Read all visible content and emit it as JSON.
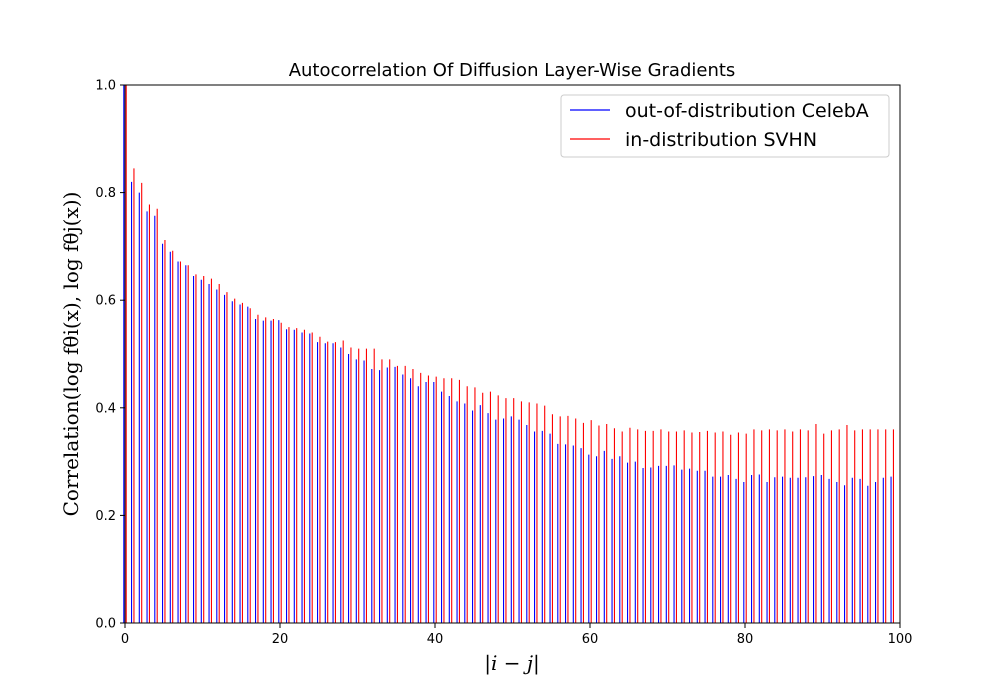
{
  "chart_data": {
    "type": "bar",
    "title": "Autocorrelation Of Diffusion Layer-Wise Gradients",
    "xlabel": "|i − j|",
    "ylabel": "Correlation(log fθi(x), log fθj(x))",
    "xlim": [
      0,
      100
    ],
    "ylim": [
      0,
      1.0
    ],
    "xticks": [
      0,
      20,
      40,
      60,
      80,
      100
    ],
    "yticks": [
      0.0,
      0.2,
      0.4,
      0.6,
      0.8,
      1.0
    ],
    "ytick_labels": [
      "0.0",
      "0.2",
      "0.4",
      "0.6",
      "0.8",
      "1.0"
    ],
    "xtick_labels": [
      "0",
      "20",
      "40",
      "60",
      "80",
      "100"
    ],
    "grid": false,
    "legend_position": "top-right",
    "x": [
      0,
      1,
      2,
      3,
      4,
      5,
      6,
      7,
      8,
      9,
      10,
      11,
      12,
      13,
      14,
      15,
      16,
      17,
      18,
      19,
      20,
      21,
      22,
      23,
      24,
      25,
      26,
      27,
      28,
      29,
      30,
      31,
      32,
      33,
      34,
      35,
      36,
      37,
      38,
      39,
      40,
      41,
      42,
      43,
      44,
      45,
      46,
      47,
      48,
      49,
      50,
      51,
      52,
      53,
      54,
      55,
      56,
      57,
      58,
      59,
      60,
      61,
      62,
      63,
      64,
      65,
      66,
      67,
      68,
      69,
      70,
      71,
      72,
      73,
      74,
      75,
      76,
      77,
      78,
      79,
      80,
      81,
      82,
      83,
      84,
      85,
      86,
      87,
      88,
      89,
      90,
      91,
      92,
      93,
      94,
      95,
      96,
      97,
      98,
      99
    ],
    "series": [
      {
        "name": "out-of-distribution CelebA",
        "color": "#0000ff",
        "values": [
          1.0,
          0.82,
          0.8,
          0.765,
          0.757,
          0.705,
          0.69,
          0.672,
          0.665,
          0.645,
          0.638,
          0.63,
          0.62,
          0.61,
          0.598,
          0.592,
          0.588,
          0.565,
          0.562,
          0.562,
          0.563,
          0.546,
          0.545,
          0.54,
          0.538,
          0.522,
          0.52,
          0.52,
          0.512,
          0.5,
          0.49,
          0.488,
          0.472,
          0.47,
          0.475,
          0.476,
          0.462,
          0.455,
          0.44,
          0.448,
          0.448,
          0.43,
          0.422,
          0.412,
          0.408,
          0.395,
          0.405,
          0.39,
          0.378,
          0.38,
          0.384,
          0.378,
          0.368,
          0.356,
          0.357,
          0.352,
          0.333,
          0.332,
          0.33,
          0.325,
          0.313,
          0.31,
          0.32,
          0.305,
          0.31,
          0.298,
          0.3,
          0.288,
          0.289,
          0.292,
          0.292,
          0.293,
          0.285,
          0.287,
          0.283,
          0.283,
          0.272,
          0.272,
          0.275,
          0.268,
          0.262,
          0.275,
          0.276,
          0.262,
          0.271,
          0.272,
          0.27,
          0.27,
          0.271,
          0.273,
          0.275,
          0.268,
          0.262,
          0.256,
          0.27,
          0.268,
          0.255,
          0.262,
          0.27,
          0.272
        ]
      },
      {
        "name": "in-distribution SVHN",
        "color": "#ff0000",
        "values": [
          1.0,
          0.845,
          0.818,
          0.778,
          0.77,
          0.712,
          0.692,
          0.672,
          0.665,
          0.648,
          0.645,
          0.64,
          0.63,
          0.615,
          0.603,
          0.595,
          0.585,
          0.573,
          0.568,
          0.565,
          0.558,
          0.55,
          0.548,
          0.545,
          0.54,
          0.532,
          0.523,
          0.522,
          0.525,
          0.512,
          0.51,
          0.51,
          0.51,
          0.49,
          0.49,
          0.478,
          0.478,
          0.472,
          0.465,
          0.46,
          0.458,
          0.455,
          0.455,
          0.452,
          0.44,
          0.438,
          0.428,
          0.43,
          0.423,
          0.418,
          0.418,
          0.412,
          0.41,
          0.408,
          0.404,
          0.388,
          0.384,
          0.385,
          0.38,
          0.372,
          0.377,
          0.367,
          0.37,
          0.362,
          0.356,
          0.363,
          0.36,
          0.357,
          0.357,
          0.36,
          0.356,
          0.356,
          0.358,
          0.354,
          0.355,
          0.357,
          0.354,
          0.356,
          0.35,
          0.354,
          0.352,
          0.36,
          0.358,
          0.36,
          0.358,
          0.36,
          0.356,
          0.36,
          0.358,
          0.37,
          0.352,
          0.358,
          0.36,
          0.368,
          0.358,
          0.36,
          0.36,
          0.36,
          0.36,
          0.36
        ]
      }
    ]
  }
}
